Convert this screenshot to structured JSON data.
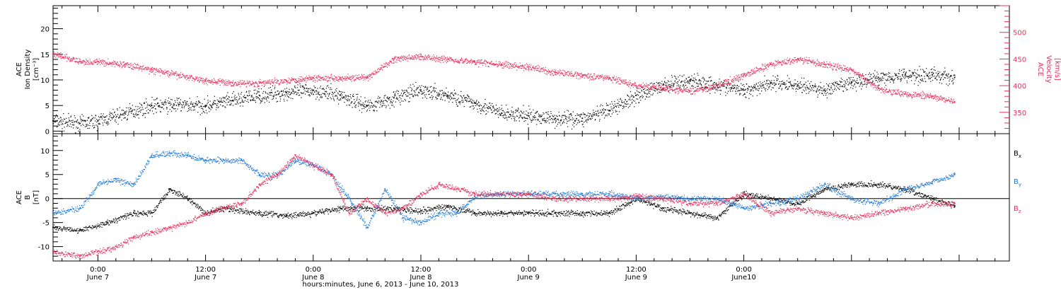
{
  "figure": {
    "xlabel": "hours:minutes, June  6, 2013 - June 10, 2013",
    "tick_times": [
      "0:00",
      "12:00",
      "0:00",
      "12:00",
      "0:00",
      "12:00",
      "0:00"
    ],
    "tick_dates": [
      "June 7",
      "June 7",
      "June 8",
      "June 8",
      "June 9",
      "June 9",
      "June10"
    ]
  },
  "colors": {
    "black": "#000000",
    "blue": "#1f7ad6",
    "red": "#e8305c"
  },
  "chart_data": [
    {
      "type": "scatter",
      "panel": "top",
      "ylabel_lines": [
        "ACE",
        "Ion Density",
        "[cm⁻³]"
      ],
      "ylabel_right_lines": [
        "ACE",
        "Velocity",
        "[km/s]"
      ],
      "x_range_hours": [
        -5,
        101.6
      ],
      "ylim": [
        -0.5,
        24.5
      ],
      "yticks": [
        0,
        5,
        10,
        15,
        20
      ],
      "ytick_labels": [
        "0",
        "5",
        "10",
        "15",
        "20"
      ],
      "y2lim": [
        310,
        550
      ],
      "y2ticks": [
        350,
        400,
        450,
        500
      ],
      "y2tick_labels": [
        "350",
        "400",
        "450",
        "500"
      ],
      "series": [
        {
          "color": "black",
          "axis": "left",
          "x": [
            -5,
            -2,
            0,
            3,
            6,
            9,
            12,
            15,
            18,
            21,
            24,
            27,
            30,
            33,
            36,
            39,
            42,
            45,
            48,
            51,
            54,
            57,
            60,
            63,
            66,
            69,
            72,
            75,
            78,
            81,
            84,
            87,
            90,
            93,
            95.5
          ],
          "y": [
            2,
            1.5,
            2,
            3.5,
            5,
            5.2,
            5,
            6,
            7,
            7.5,
            8,
            7,
            5,
            6.5,
            8,
            7,
            5.5,
            3.5,
            3,
            2.5,
            2.5,
            4,
            7,
            9,
            10,
            9,
            8,
            9.5,
            9,
            8,
            9.5,
            10.5,
            11,
            11,
            10.5
          ]
        },
        {
          "color": "red",
          "axis": "right",
          "x": [
            -5,
            -2,
            0,
            3,
            6,
            9,
            12,
            15,
            18,
            21,
            24,
            27,
            30,
            33,
            36,
            39,
            42,
            45,
            48,
            51,
            54,
            57,
            60,
            63,
            66,
            69,
            72,
            75,
            78,
            81,
            84,
            87,
            90,
            93,
            95.5
          ],
          "y": [
            460,
            445,
            445,
            440,
            430,
            420,
            410,
            405,
            405,
            410,
            415,
            415,
            415,
            450,
            455,
            450,
            445,
            440,
            435,
            425,
            420,
            415,
            400,
            395,
            390,
            400,
            420,
            440,
            450,
            440,
            430,
            395,
            385,
            380,
            370
          ]
        }
      ]
    },
    {
      "type": "scatter",
      "panel": "bottom",
      "ylabel_lines": [
        "ACE",
        "B",
        "[nT]"
      ],
      "x_range_hours": [
        -5,
        101.6
      ],
      "ylim": [
        -13,
        13.5
      ],
      "yticks": [
        -10,
        -5,
        0,
        5,
        10
      ],
      "ytick_labels": [
        "-10",
        "-5",
        "0",
        "5",
        "10"
      ],
      "zero_line": true,
      "series": [
        {
          "name": "B",
          "subscript": "x",
          "color": "black",
          "x": [
            -5,
            -2,
            1,
            4,
            6,
            8,
            10,
            12,
            14,
            18,
            21,
            24,
            27,
            30,
            33,
            36,
            39,
            42,
            45,
            48,
            51,
            54,
            57,
            60,
            63,
            66,
            69,
            72,
            75,
            78,
            81,
            84,
            87,
            90,
            93,
            95.5
          ],
          "y": [
            -6,
            -6.5,
            -5,
            -3,
            -3,
            2,
            0,
            -3,
            -2,
            -3,
            -3.5,
            -3,
            -2,
            -2,
            -2,
            -2.5,
            -1.5,
            -3,
            -3,
            -3,
            -3,
            -3,
            -3,
            0,
            -2,
            -3,
            -4,
            1,
            0,
            -1,
            2,
            3,
            3,
            2,
            0,
            -1.5
          ]
        },
        {
          "name": "B",
          "subscript": "y",
          "color": "blue",
          "x": [
            -5,
            -2,
            0,
            2,
            4,
            6,
            8,
            10,
            12,
            14,
            16,
            18,
            20,
            22,
            24,
            26,
            28,
            30,
            32,
            34,
            36,
            38,
            40,
            42,
            45,
            48,
            51,
            54,
            57,
            60,
            63,
            66,
            69,
            72,
            75,
            78,
            81,
            84,
            87,
            90,
            93,
            95.5
          ],
          "y": [
            -3,
            -2,
            3,
            4,
            3,
            9,
            9.5,
            9,
            8,
            8,
            8,
            5,
            5,
            8,
            7,
            5,
            0,
            -6,
            2,
            -4,
            -5,
            -3,
            -3,
            0.5,
            1,
            1,
            1,
            1,
            1,
            0,
            0.5,
            0,
            0,
            -2,
            -1,
            0,
            3,
            0,
            -1,
            2,
            3.5,
            5
          ]
        },
        {
          "name": "B",
          "subscript": "z",
          "color": "red",
          "x": [
            -5,
            -2,
            0,
            2,
            4,
            6,
            8,
            10,
            12,
            14,
            16,
            18,
            20,
            22,
            24,
            26,
            28,
            30,
            32,
            34,
            36,
            38,
            40,
            42,
            45,
            48,
            51,
            54,
            57,
            60,
            63,
            66,
            69,
            72,
            75,
            78,
            81,
            84,
            87,
            90,
            93,
            95.5
          ],
          "y": [
            -11,
            -12,
            -11,
            -10,
            -8,
            -7,
            -6,
            -5,
            -3,
            -2,
            -1,
            3,
            5,
            9,
            7,
            5,
            -3,
            0,
            -3,
            -2,
            1,
            3,
            2,
            1,
            1,
            1,
            0,
            0,
            0,
            0.5,
            0,
            -1,
            -1,
            1,
            -3,
            -2,
            -3,
            -4,
            -3,
            -2,
            -1,
            -1
          ]
        }
      ]
    }
  ]
}
